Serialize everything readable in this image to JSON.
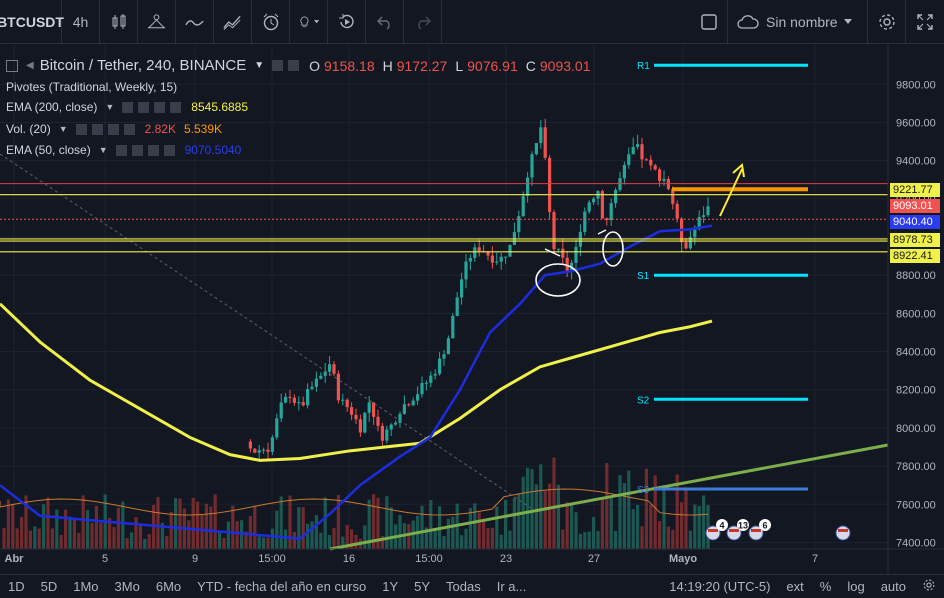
{
  "toolbar": {
    "symbol": "BTCUSDT",
    "interval": "4h",
    "layout_name": "Sin nombre"
  },
  "legend": {
    "main": {
      "title": "Bitcoin / Tether, 240, BINANCE",
      "o_label": "O",
      "o": "9158.18",
      "h_label": "H",
      "h": "9172.27",
      "l_label": "L",
      "l": "9076.91",
      "c_label": "C",
      "c": "9093.01"
    },
    "pivots": "Pivotes (Traditional, Weekly, 15)",
    "ema200": {
      "name": "EMA (200, close)",
      "value": "8545.6885"
    },
    "vol": {
      "name": "Vol. (20)",
      "v1": "2.82K",
      "v2": "5.539K"
    },
    "ema50": {
      "name": "EMA (50, close)",
      "value": "9070.5040"
    }
  },
  "price_axis": {
    "ticks": [
      "9800.00",
      "9600.00",
      "9400.00",
      "9200.00",
      "9000.00",
      "8800.00",
      "8600.00",
      "8400.00",
      "8200.00",
      "8000.00",
      "7800.00",
      "7600.00",
      "7400.00"
    ],
    "tags": {
      "t1": "9221.77",
      "t2": "9093.01",
      "t3": "9040.40",
      "t4": "8978.73",
      "t5": "8922.41"
    }
  },
  "pivot_labels": {
    "r1": "R1",
    "s1": "S1",
    "s2": "S2",
    "s3": "S3"
  },
  "time_axis": [
    "Abr",
    "5",
    "9",
    "15:00",
    "16",
    "15:00",
    "23",
    "27",
    "Mayo",
    "7"
  ],
  "events": {
    "e1": "4",
    "e2": "13",
    "e3": "6"
  },
  "bottombar": {
    "ranges": [
      "1D",
      "5D",
      "1Mo",
      "3Mo",
      "6Mo",
      "YTD - fecha del año en curso",
      "1Y",
      "5Y",
      "Todas"
    ],
    "goto": "Ir a...",
    "time": "14:19:20 (UTC-5)",
    "ext": "ext",
    "pct": "%",
    "log": "log",
    "auto": "auto"
  },
  "colors": {
    "bg": "#131722",
    "up": "#26a69a",
    "down": "#ef5350",
    "ema200": "#f0f04a",
    "ema50": "#1c2de0",
    "pivot_cyan": "#00e5ff",
    "orange": "#ff9800"
  }
}
